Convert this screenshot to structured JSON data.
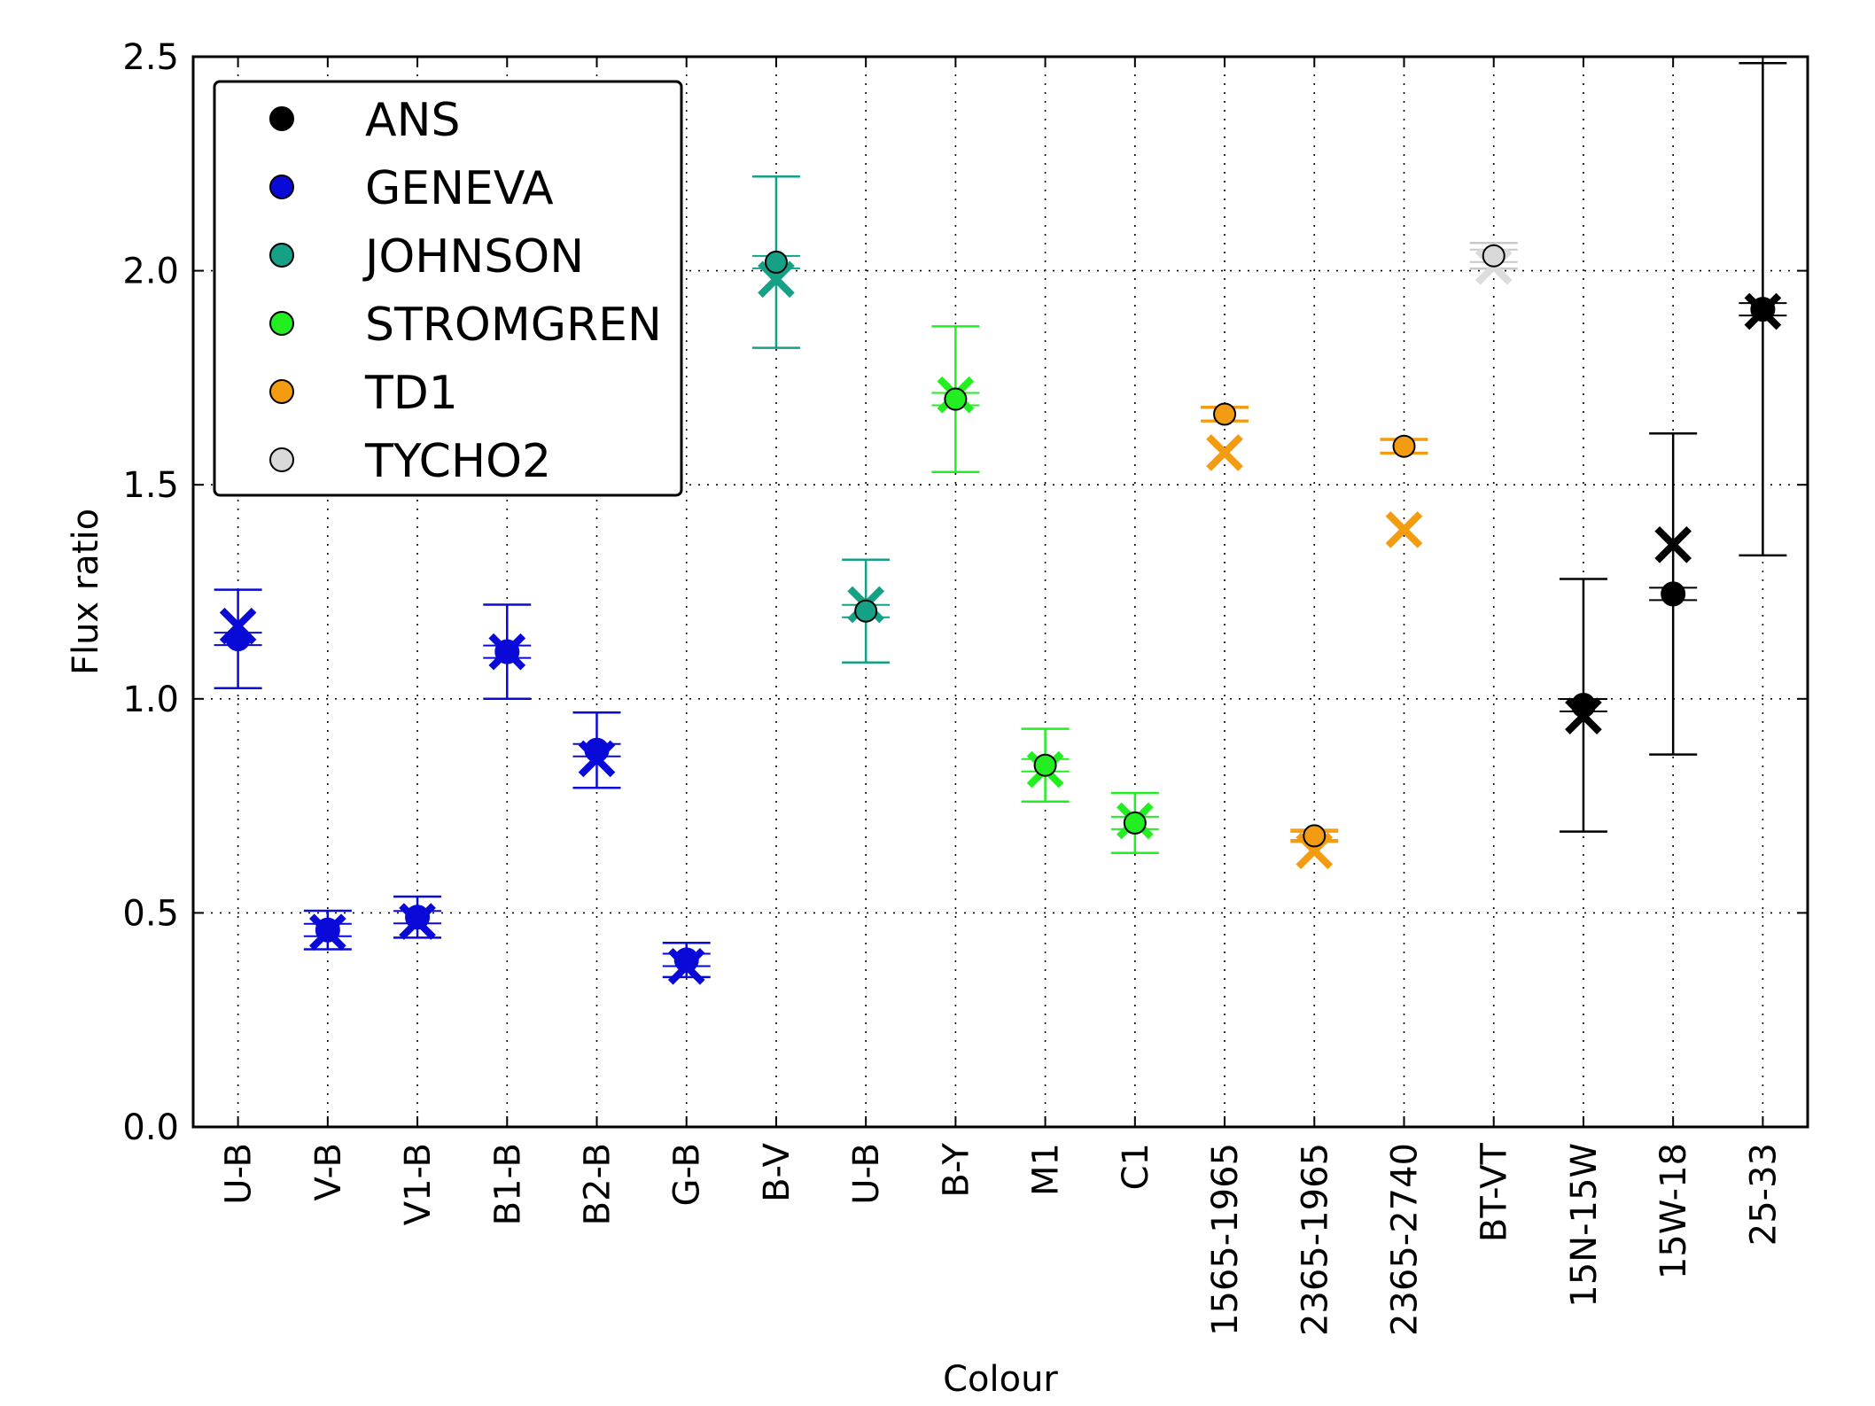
{
  "chart_data": {
    "type": "scatter",
    "title": "",
    "xlabel": "Colour",
    "ylabel": "Flux ratio",
    "ylim": [
      0.0,
      2.5
    ],
    "yticks": [
      "0.0",
      "0.5",
      "1.0",
      "1.5",
      "2.0",
      "2.5"
    ],
    "grid": true,
    "legend_position": "top-left",
    "categories": [
      "U-B",
      "V-B",
      "V1-B",
      "B1-B",
      "B2-B",
      "G-B",
      "B-V",
      "U-B",
      "B-Y",
      "M1",
      "C1",
      "1565-1965",
      "2365-1965",
      "2365-2740",
      "BT-VT",
      "15N-15W",
      "15W-18",
      "25-33"
    ],
    "colors": {
      "ANS": "#000000",
      "GENEVA": "#0a0ad8",
      "JOHNSON": "#16a085",
      "STROMGREN": "#22ee22",
      "TD1": "#f39c12",
      "TYCHO2": "#d9d9d9"
    },
    "legend": [
      "ANS",
      "GENEVA",
      "JOHNSON",
      "STROMGREN",
      "TD1",
      "TYCHO2"
    ],
    "series": [
      {
        "name": "GENEVA",
        "indices": [
          0,
          1,
          2,
          3,
          4,
          5
        ],
        "observed": [
          1.14,
          0.46,
          0.49,
          1.11,
          0.88,
          0.39
        ],
        "error": [
          0.115,
          0.045,
          0.048,
          0.11,
          0.088,
          0.04
        ],
        "model": [
          1.17,
          0.455,
          0.48,
          1.11,
          0.86,
          0.375
        ]
      },
      {
        "name": "JOHNSON",
        "indices": [
          6,
          7
        ],
        "observed": [
          2.02,
          1.205
        ],
        "error": [
          0.2,
          0.12
        ],
        "model": [
          1.98,
          1.22
        ]
      },
      {
        "name": "STROMGREN",
        "indices": [
          8,
          9,
          10
        ],
        "observed": [
          1.7,
          0.845,
          0.71
        ],
        "error": [
          0.17,
          0.085,
          0.07
        ],
        "model": [
          1.71,
          0.835,
          0.715
        ]
      },
      {
        "name": "TD1",
        "indices": [
          11,
          12,
          13
        ],
        "observed": [
          1.665,
          0.68,
          1.59
        ],
        "error": [
          0.017,
          0.01,
          0.017
        ],
        "model": [
          1.575,
          0.645,
          1.395
        ]
      },
      {
        "name": "TYCHO2",
        "indices": [
          14
        ],
        "observed": [
          2.035
        ],
        "error": [
          0.03
        ],
        "model": [
          2.01
        ]
      },
      {
        "name": "ANS",
        "indices": [
          15,
          16,
          17
        ],
        "observed": [
          0.985,
          1.245,
          1.91
        ],
        "error": [
          0.295,
          0.375,
          0.575
        ],
        "model": [
          0.96,
          1.36,
          1.905
        ]
      }
    ]
  }
}
